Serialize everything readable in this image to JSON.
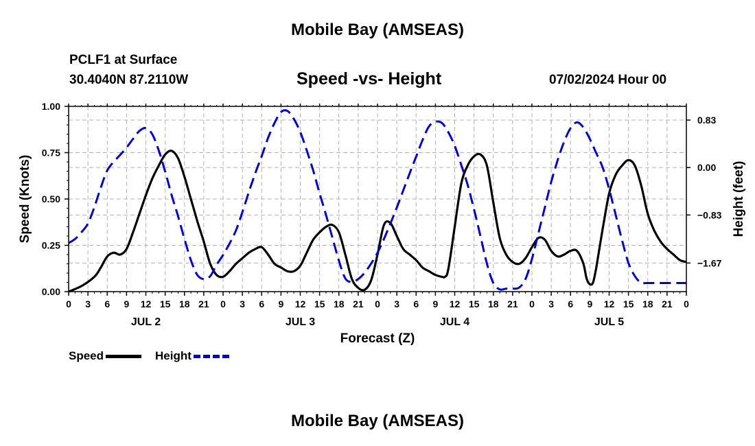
{
  "header": {
    "title": "Mobile Bay (AMSEAS)",
    "station": "PCLF1 at Surface",
    "coordinates": "30.4040N  87.2110W",
    "subtitle": "Speed -vs- Height",
    "datetime": "07/02/2024 Hour 00"
  },
  "footer": {
    "title": "Mobile Bay (AMSEAS)"
  },
  "legend": {
    "speed": "Speed",
    "height": "Height"
  },
  "chart_data": {
    "type": "line",
    "xlabel": "Forecast (Z)",
    "ylabel": "Speed (Knots)",
    "y2label": "Height (feet)",
    "xlim": [
      0,
      96
    ],
    "ylim": [
      0,
      1
    ],
    "y2lim": [
      -2.17,
      1.07
    ],
    "grid": true,
    "x_tick_labels": [
      "0",
      "3",
      "6",
      "9",
      "12",
      "15",
      "18",
      "21",
      "0",
      "3",
      "6",
      "9",
      "12",
      "15",
      "18",
      "21",
      "0",
      "3",
      "6",
      "9",
      "12",
      "15",
      "18",
      "21",
      "0",
      "3",
      "6",
      "9",
      "12",
      "15",
      "18",
      "21",
      "0"
    ],
    "y_ticks": [
      0.0,
      0.25,
      0.5,
      0.75,
      1.0
    ],
    "y_tick_labels": [
      "0.00",
      "0.25",
      "0.50",
      "0.75",
      "1.00"
    ],
    "y2_ticks": [
      -1.67,
      -0.83,
      0.0,
      0.83
    ],
    "y2_tick_labels": [
      "−1.67",
      "−0.83",
      "0.00",
      "0.83"
    ],
    "day_labels": [
      {
        "x": 12,
        "label": "JUL 2"
      },
      {
        "x": 36,
        "label": "JUL 3"
      },
      {
        "x": 60,
        "label": "JUL 4"
      },
      {
        "x": 84,
        "label": "JUL 5"
      }
    ],
    "series": [
      {
        "name": "Speed",
        "axis": "left",
        "color": "#000000",
        "style": "solid",
        "points": [
          [
            0,
            0.0
          ],
          [
            2,
            0.03
          ],
          [
            4,
            0.08
          ],
          [
            5,
            0.13
          ],
          [
            6,
            0.19
          ],
          [
            7,
            0.21
          ],
          [
            8,
            0.2
          ],
          [
            9,
            0.23
          ],
          [
            10,
            0.32
          ],
          [
            11,
            0.42
          ],
          [
            12,
            0.52
          ],
          [
            13,
            0.61
          ],
          [
            14,
            0.68
          ],
          [
            15,
            0.74
          ],
          [
            16,
            0.76
          ],
          [
            17,
            0.72
          ],
          [
            18,
            0.62
          ],
          [
            19,
            0.5
          ],
          [
            20,
            0.38
          ],
          [
            21,
            0.27
          ],
          [
            22,
            0.15
          ],
          [
            23,
            0.09
          ],
          [
            24,
            0.08
          ],
          [
            25,
            0.11
          ],
          [
            26,
            0.15
          ],
          [
            27,
            0.18
          ],
          [
            28,
            0.21
          ],
          [
            29,
            0.23
          ],
          [
            30,
            0.24
          ],
          [
            31,
            0.2
          ],
          [
            32,
            0.15
          ],
          [
            33,
            0.13
          ],
          [
            34,
            0.11
          ],
          [
            35,
            0.11
          ],
          [
            36,
            0.14
          ],
          [
            37,
            0.21
          ],
          [
            38,
            0.28
          ],
          [
            39,
            0.32
          ],
          [
            40,
            0.35
          ],
          [
            41,
            0.36
          ],
          [
            42,
            0.32
          ],
          [
            43,
            0.2
          ],
          [
            44,
            0.07
          ],
          [
            45,
            0.02
          ],
          [
            46,
            0.01
          ],
          [
            47,
            0.06
          ],
          [
            48,
            0.2
          ],
          [
            49,
            0.36
          ],
          [
            50,
            0.37
          ],
          [
            51,
            0.3
          ],
          [
            52,
            0.23
          ],
          [
            53,
            0.2
          ],
          [
            54,
            0.17
          ],
          [
            55,
            0.13
          ],
          [
            56,
            0.11
          ],
          [
            57,
            0.09
          ],
          [
            58,
            0.08
          ],
          [
            58.5,
            0.08
          ],
          [
            59,
            0.12
          ],
          [
            60,
            0.35
          ],
          [
            61,
            0.58
          ],
          [
            62,
            0.68
          ],
          [
            63,
            0.73
          ],
          [
            64,
            0.74
          ],
          [
            65,
            0.68
          ],
          [
            66,
            0.48
          ],
          [
            67,
            0.29
          ],
          [
            68,
            0.2
          ],
          [
            69,
            0.16
          ],
          [
            70,
            0.15
          ],
          [
            71,
            0.18
          ],
          [
            72,
            0.24
          ],
          [
            73,
            0.29
          ],
          [
            74,
            0.28
          ],
          [
            75,
            0.22
          ],
          [
            76,
            0.19
          ],
          [
            77,
            0.2
          ],
          [
            78,
            0.22
          ],
          [
            79,
            0.22
          ],
          [
            80,
            0.15
          ],
          [
            80.5,
            0.07
          ],
          [
            81,
            0.04
          ],
          [
            81.5,
            0.05
          ],
          [
            82,
            0.13
          ],
          [
            83,
            0.34
          ],
          [
            84,
            0.53
          ],
          [
            85,
            0.63
          ],
          [
            86,
            0.68
          ],
          [
            87,
            0.71
          ],
          [
            88,
            0.68
          ],
          [
            89,
            0.57
          ],
          [
            90,
            0.42
          ],
          [
            91,
            0.33
          ],
          [
            92,
            0.27
          ],
          [
            93,
            0.23
          ],
          [
            94,
            0.2
          ],
          [
            95,
            0.17
          ],
          [
            96,
            0.16
          ]
        ]
      },
      {
        "name": "Height",
        "axis": "right",
        "color": "#0000cc",
        "style": "dashed",
        "points": [
          [
            0,
            -1.32
          ],
          [
            1,
            -1.25
          ],
          [
            2,
            -1.13
          ],
          [
            3,
            -0.98
          ],
          [
            4,
            -0.69
          ],
          [
            5,
            -0.35
          ],
          [
            6,
            -0.05
          ],
          [
            7,
            0.1
          ],
          [
            8,
            0.22
          ],
          [
            9,
            0.35
          ],
          [
            10,
            0.5
          ],
          [
            11,
            0.64
          ],
          [
            12,
            0.69
          ],
          [
            13,
            0.58
          ],
          [
            14,
            0.3
          ],
          [
            15,
            -0.07
          ],
          [
            16,
            -0.48
          ],
          [
            17,
            -0.85
          ],
          [
            18,
            -1.25
          ],
          [
            19,
            -1.62
          ],
          [
            20,
            -1.88
          ],
          [
            21,
            -1.95
          ],
          [
            22,
            -1.9
          ],
          [
            23,
            -1.7
          ],
          [
            24,
            -1.53
          ],
          [
            25,
            -1.33
          ],
          [
            26,
            -1.1
          ],
          [
            27,
            -0.78
          ],
          [
            28,
            -0.43
          ],
          [
            29,
            -0.1
          ],
          [
            30,
            0.2
          ],
          [
            31,
            0.52
          ],
          [
            32,
            0.78
          ],
          [
            33,
            0.97
          ],
          [
            34,
            0.99
          ],
          [
            35,
            0.85
          ],
          [
            36,
            0.62
          ],
          [
            37,
            0.3
          ],
          [
            38,
            -0.05
          ],
          [
            39,
            -0.45
          ],
          [
            40,
            -0.83
          ],
          [
            41,
            -1.23
          ],
          [
            42,
            -1.63
          ],
          [
            43,
            -1.94
          ],
          [
            44,
            -2.0
          ],
          [
            45,
            -1.95
          ],
          [
            46,
            -1.84
          ],
          [
            47,
            -1.68
          ],
          [
            48,
            -1.49
          ],
          [
            49,
            -1.25
          ],
          [
            50,
            -0.98
          ],
          [
            51,
            -0.7
          ],
          [
            52,
            -0.4
          ],
          [
            53,
            -0.1
          ],
          [
            54,
            0.19
          ],
          [
            55,
            0.48
          ],
          [
            56,
            0.72
          ],
          [
            57,
            0.8
          ],
          [
            58,
            0.78
          ],
          [
            59,
            0.62
          ],
          [
            60,
            0.38
          ],
          [
            61,
            0.05
          ],
          [
            62,
            -0.3
          ],
          [
            63,
            -0.73
          ],
          [
            64,
            -1.2
          ],
          [
            65,
            -1.68
          ],
          [
            66,
            -2.02
          ],
          [
            67,
            -2.13
          ],
          [
            68,
            -2.12
          ],
          [
            69,
            -2.12
          ],
          [
            70,
            -2.1
          ],
          [
            71,
            -1.95
          ],
          [
            72,
            -1.6
          ],
          [
            73,
            -1.15
          ],
          [
            74,
            -0.7
          ],
          [
            75,
            -0.25
          ],
          [
            76,
            0.13
          ],
          [
            77,
            0.45
          ],
          [
            78,
            0.69
          ],
          [
            79,
            0.79
          ],
          [
            80,
            0.7
          ],
          [
            81,
            0.5
          ],
          [
            82,
            0.25
          ],
          [
            83,
            0.0
          ],
          [
            84,
            -0.38
          ],
          [
            85,
            -0.82
          ],
          [
            86,
            -1.27
          ],
          [
            87,
            -1.67
          ],
          [
            88,
            -1.9
          ],
          [
            89,
            -2.02
          ],
          [
            90,
            -2.02
          ],
          [
            96,
            -2.02
          ]
        ]
      }
    ]
  }
}
